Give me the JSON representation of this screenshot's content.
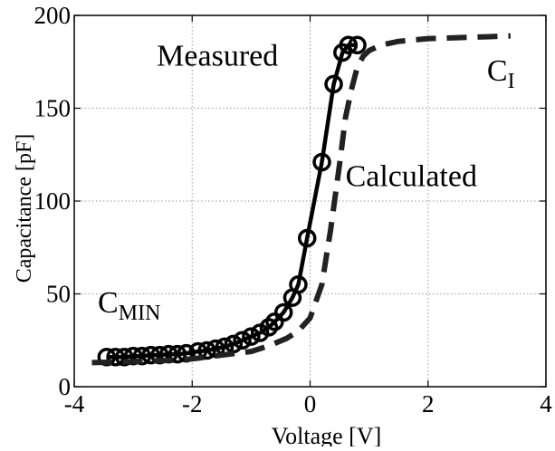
{
  "chart_data": {
    "type": "line",
    "title": "",
    "xlabel": "Voltage [V]",
    "ylabel": "Capacitance [pF]",
    "xlim": [
      -4,
      4
    ],
    "ylim": [
      0,
      200
    ],
    "xticks": [
      "-4",
      "-2",
      "0",
      "2",
      "4"
    ],
    "yticks": [
      "0",
      "50",
      "100",
      "150",
      "200"
    ],
    "grid": true,
    "colors": {
      "measured": "#000000",
      "calculated": "#222222",
      "grid": "#9a9a9a"
    },
    "series": [
      {
        "name": "Measured",
        "style": "solid-with-circles",
        "x": [
          -3.45,
          -3.3,
          -3.15,
          -3.0,
          -2.85,
          -2.7,
          -2.55,
          -2.4,
          -2.25,
          -2.1,
          -1.9,
          -1.75,
          -1.6,
          -1.45,
          -1.3,
          -1.15,
          -1.0,
          -0.85,
          -0.7,
          -0.6,
          -0.45,
          -0.3,
          -0.2,
          -0.05,
          0.2,
          0.4,
          0.55,
          0.65,
          0.8
        ],
        "y": [
          16,
          16,
          16,
          16.5,
          16.5,
          17,
          17,
          17.5,
          17.5,
          18,
          19,
          19.5,
          20.5,
          21.5,
          23,
          25,
          27,
          29,
          32,
          35,
          40,
          48,
          55,
          80,
          121,
          163,
          180,
          184,
          184
        ]
      },
      {
        "name": "Calculated",
        "style": "dashed",
        "x": [
          -3.7,
          -3.0,
          -2.5,
          -2.0,
          -1.5,
          -1.0,
          -0.7,
          -0.4,
          -0.2,
          0.0,
          0.2,
          0.35,
          0.5,
          0.6,
          0.7,
          0.8,
          0.9,
          1.0,
          1.2,
          1.5,
          2.0,
          2.5,
          3.0,
          3.4
        ],
        "y": [
          13,
          13.5,
          14,
          15,
          17,
          19,
          22,
          26,
          30,
          37,
          55,
          85,
          120,
          145,
          160,
          172,
          178,
          181,
          184,
          186,
          187.5,
          188,
          188.5,
          189
        ]
      }
    ],
    "annotations": [
      {
        "id": "measured",
        "text": "Measured",
        "x": -2.6,
        "y": 173
      },
      {
        "id": "calculated",
        "text": "Calculated",
        "x": 0.6,
        "y": 108
      },
      {
        "id": "cmin",
        "text": "C",
        "sub": "MIN",
        "x": -3.6,
        "y": 40
      },
      {
        "id": "ci",
        "text": "C",
        "sub": "I",
        "x": 3.0,
        "y": 165
      }
    ]
  }
}
